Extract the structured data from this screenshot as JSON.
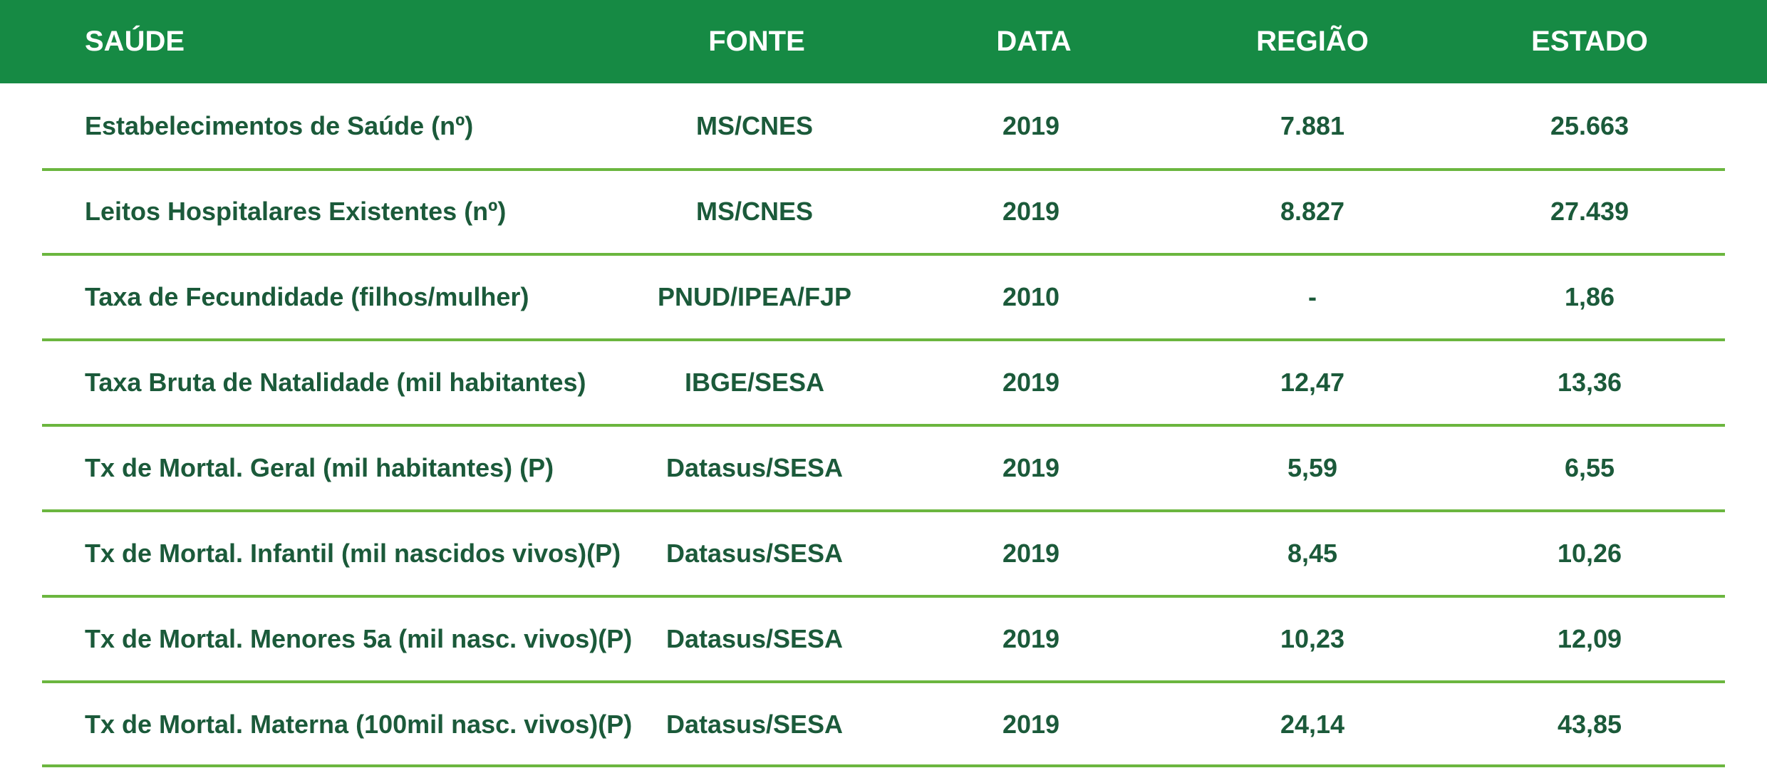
{
  "headers": {
    "saude": "SAÚDE",
    "fonte": "FONTE",
    "data": "DATA",
    "regiao": "REGIÃO",
    "estado": "ESTADO"
  },
  "rows": [
    {
      "label": "Estabelecimentos de Saúde (nº)",
      "fonte": "MS/CNES",
      "data": "2019",
      "regiao": "7.881",
      "estado": "25.663"
    },
    {
      "label": "Leitos Hospitalares Existentes (nº)",
      "fonte": "MS/CNES",
      "data": "2019",
      "regiao": "8.827",
      "estado": "27.439"
    },
    {
      "label": "Taxa de Fecundidade (filhos/mulher)",
      "fonte": "PNUD/IPEA/FJP",
      "data": "2010",
      "regiao": "-",
      "estado": "1,86"
    },
    {
      "label": "Taxa Bruta de Natalidade (mil habitantes)",
      "fonte": "IBGE/SESA",
      "data": "2019",
      "regiao": "12,47",
      "estado": "13,36"
    },
    {
      "label": "Tx de Mortal. Geral (mil habitantes) (P)",
      "fonte": "Datasus/SESA",
      "data": "2019",
      "regiao": "5,59",
      "estado": "6,55"
    },
    {
      "label": "Tx de Mortal. Infantil (mil nascidos vivos)(P)",
      "fonte": "Datasus/SESA",
      "data": "2019",
      "regiao": "8,45",
      "estado": "10,26"
    },
    {
      "label": "Tx de Mortal. Menores 5a (mil nasc. vivos)(P)",
      "fonte": "Datasus/SESA",
      "data": "2019",
      "regiao": "10,23",
      "estado": "12,09"
    },
    {
      "label": "Tx de Mortal. Materna (100mil nasc. vivos)(P)",
      "fonte": "Datasus/SESA",
      "data": "2019",
      "regiao": "24,14",
      "estado": "43,85"
    }
  ],
  "colors": {
    "header_bg": "#168a44",
    "header_text": "#ffffff",
    "cell_text": "#1b5a3a",
    "divider": "#6bb63f"
  }
}
